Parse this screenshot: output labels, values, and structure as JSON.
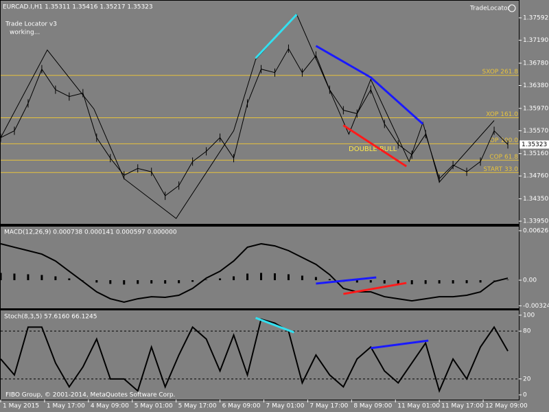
{
  "header": {
    "symbol_info": "EURCAD.I,H1  1.35311 1.35416 1.35217 1.35323",
    "indicator_name": "Trade Locator v3",
    "status": "working...",
    "brand": "TradeLocator",
    "pattern_label": "DOUBLE BULL",
    "copyright": "FIBO Group, © 2001-2014, MetaQuotes Software Corp."
  },
  "time_axis": {
    "xlim": [
      0,
      189
    ],
    "xticks": [
      {
        "value": 0,
        "label": "1 May 2015"
      },
      {
        "value": 16,
        "label": "1 May 17:00"
      },
      {
        "value": 32,
        "label": "4 May 09:00"
      },
      {
        "value": 48,
        "label": "5 May 01:00"
      },
      {
        "value": 64,
        "label": "5 May 17:00"
      },
      {
        "value": 80,
        "label": "6 May 09:00"
      },
      {
        "value": 96,
        "label": "7 May 01:00"
      },
      {
        "value": 112,
        "label": "7 May 17:00"
      },
      {
        "value": 128,
        "label": "8 May 09:00"
      },
      {
        "value": 144,
        "label": "11 May 01:00"
      },
      {
        "value": 160,
        "label": "11 May 17:00"
      },
      {
        "value": 176,
        "label": "12 May 09:00"
      }
    ]
  },
  "price_panel": {
    "ylim": [
      1.33902,
      1.37899
    ],
    "yticks": [
      1.37592,
      {
        "value": 1.3719,
        "label": "1.37190"
      },
      {
        "value": 1.3678,
        "label": "1.36780"
      },
      {
        "value": 1.3638,
        "label": "1.36380"
      },
      {
        "value": 1.3597,
        "label": "1.35970"
      },
      {
        "value": 1.3557,
        "label": "1.35570"
      },
      {
        "value": 1.3516,
        "label": "1.35160"
      },
      {
        "value": 1.3476,
        "label": "1.34760"
      },
      {
        "value": 1.3435,
        "label": "1.34350"
      },
      {
        "value": 1.3395,
        "label": "1.33950"
      }
    ],
    "current_price": 1.35323,
    "levels": [
      {
        "label": "SXOP 261.8",
        "price": 1.36562
      },
      {
        "label": "XOP 161.0",
        "price": 1.35802
      },
      {
        "label": "OP 100.0",
        "price": 1.35336
      },
      {
        "label": "COP 61.8",
        "price": 1.35042
      },
      {
        "label": "START 33.0",
        "price": 1.34821
      }
    ],
    "level_color": "#e8c33c",
    "x": [
      0,
      5,
      10,
      15,
      20,
      25,
      30,
      35,
      40,
      45,
      50,
      55,
      60,
      65,
      70,
      75,
      80,
      85,
      90,
      95,
      100,
      105,
      110,
      115,
      120,
      125,
      130,
      135,
      140,
      145,
      150,
      155,
      160,
      165,
      170,
      175,
      180,
      185
    ],
    "close": [
      1.35446,
      1.35569,
      1.3606,
      1.36673,
      1.36305,
      1.36182,
      1.36243,
      1.35446,
      1.35079,
      1.34772,
      1.34895,
      1.34834,
      1.34404,
      1.34588,
      1.35017,
      1.35201,
      1.35446,
      1.35079,
      1.3606,
      1.36673,
      1.36611,
      1.3704,
      1.36611,
      1.36918,
      1.36305,
      1.35937,
      1.35876,
      1.36305,
      1.35692,
      1.35324,
      1.3514,
      1.35508,
      1.34711,
      1.34956,
      1.34834,
      1.35017,
      1.35569,
      1.35324
    ],
    "zigzag": {
      "x": [
        0,
        17,
        34,
        45,
        64,
        85,
        93,
        108,
        127,
        135,
        149,
        154,
        160,
        180
      ],
      "values": [
        1.35446,
        1.37016,
        1.35961,
        1.34711,
        1.33999,
        1.35569,
        1.36844,
        1.37653,
        1.35508,
        1.36489,
        1.35017,
        1.35716,
        1.3465,
        1.35753
      ]
    },
    "trend_lines": [
      {
        "color": "#33e0f0",
        "x": [
          93,
          108
        ],
        "values": [
          1.36869,
          1.37653
        ]
      },
      {
        "color": "#1a1aff",
        "x": [
          115,
          135,
          154
        ],
        "values": [
          1.37089,
          1.36525,
          1.35692
        ]
      },
      {
        "color": "#ff1a1a",
        "x": [
          125,
          148
        ],
        "values": [
          1.35667,
          1.34932
        ]
      }
    ]
  },
  "macd_panel": {
    "title": "MACD(12,26,9) 0.000738 0.000141 0.000597 0.000000",
    "ylim": [
      -0.00356,
      0.00678
    ],
    "yticks": [
      0.00626,
      {
        "value": 0,
        "label": "0.00"
      },
      -0.003241
    ],
    "x": [
      0,
      5,
      10,
      15,
      20,
      25,
      30,
      35,
      40,
      45,
      50,
      55,
      60,
      65,
      70,
      75,
      80,
      85,
      90,
      95,
      100,
      105,
      110,
      115,
      120,
      125,
      130,
      135,
      140,
      145,
      150,
      155,
      160,
      165,
      170,
      175,
      180,
      185
    ],
    "values": [
      0.00461,
      0.00417,
      0.00374,
      0.0033,
      0.00243,
      0.00113,
      -0.00017,
      -0.00148,
      -0.00235,
      -0.00278,
      -0.00235,
      -0.00209,
      -0.00217,
      -0.00191,
      -0.00104,
      0.00026,
      0.00113,
      0.00243,
      0.00417,
      0.00461,
      0.00434,
      0.00374,
      0.00287,
      0.002,
      0.0007,
      -0.00104,
      -0.00148,
      -0.00148,
      -0.00209,
      -0.00235,
      -0.00261,
      -0.00235,
      -0.00209,
      -0.00209,
      -0.00191,
      -0.00148,
      -0.00017,
      0.00026
    ],
    "trend_lines": [
      {
        "color": "#1a1aff",
        "x": [
          115,
          137
        ],
        "values": [
          -0.00043,
          0.00035
        ]
      },
      {
        "color": "#ff1a1a",
        "x": [
          125,
          148
        ],
        "values": [
          -0.00174,
          -0.00035
        ]
      }
    ]
  },
  "stoch_panel": {
    "title": "Stoch(8,3,5) 57.6160 66.1245",
    "ylim": [
      -6,
      106
    ],
    "yticks": [
      100,
      80,
      20,
      0
    ],
    "levels": [
      80,
      20
    ],
    "x": [
      0,
      5,
      10,
      15,
      20,
      25,
      30,
      35,
      40,
      45,
      50,
      55,
      60,
      65,
      70,
      75,
      80,
      85,
      90,
      95,
      100,
      105,
      110,
      115,
      120,
      125,
      130,
      135,
      140,
      145,
      150,
      155,
      160,
      165,
      170,
      175,
      180,
      185
    ],
    "values": [
      45,
      25,
      85,
      85,
      40,
      10,
      35,
      70,
      20,
      20,
      5,
      60,
      10,
      50,
      85,
      70,
      30,
      75,
      25,
      95,
      90,
      80,
      15,
      50,
      25,
      10,
      45,
      60,
      30,
      15,
      40,
      65,
      5,
      45,
      20,
      60,
      85,
      55
    ],
    "trend_lines": [
      {
        "color": "#33e0f0",
        "x": [
          93,
          107
        ],
        "values": [
          96.6,
          78.4
        ]
      },
      {
        "color": "#1a1aff",
        "x": [
          135,
          156
        ],
        "values": [
          58.6,
          68.1
        ]
      }
    ]
  }
}
